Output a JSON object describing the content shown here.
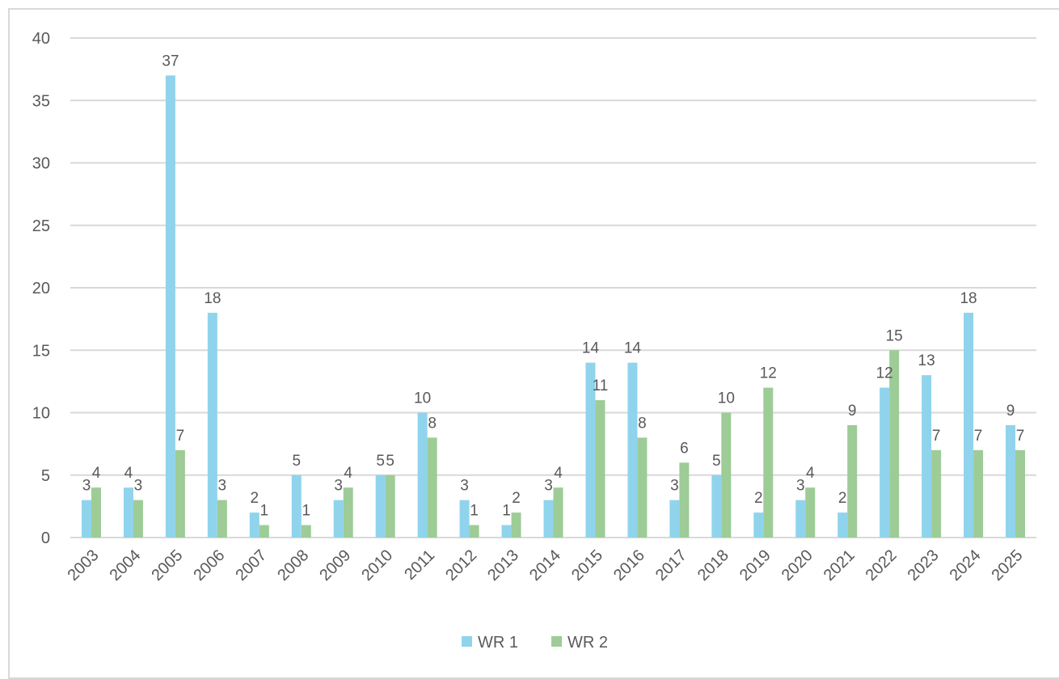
{
  "chart_data": {
    "type": "bar",
    "title": "",
    "xlabel": "",
    "ylabel": "",
    "categories": [
      "2003",
      "2004",
      "2005",
      "2006",
      "2007",
      "2008",
      "2009",
      "2010",
      "2011",
      "2012",
      "2013",
      "2014",
      "2015",
      "2016",
      "2017",
      "2018",
      "2019",
      "2020",
      "2021",
      "2022",
      "2023",
      "2024",
      "2025"
    ],
    "series": [
      {
        "name": "WR 1",
        "color": "#8fd4ec",
        "values": [
          3,
          4,
          37,
          18,
          2,
          5,
          3,
          5,
          10,
          3,
          1,
          3,
          14,
          14,
          3,
          5,
          2,
          3,
          2,
          12,
          13,
          18,
          9
        ]
      },
      {
        "name": "WR 2",
        "color": "#9dcc97",
        "values": [
          4,
          3,
          7,
          3,
          1,
          1,
          4,
          5,
          8,
          1,
          2,
          4,
          11,
          8,
          6,
          10,
          12,
          4,
          9,
          15,
          7,
          7,
          7
        ]
      }
    ],
    "ylim": [
      0,
      40
    ],
    "yticks": [
      0,
      5,
      10,
      15,
      20,
      25,
      30,
      35,
      40
    ],
    "grid": true,
    "legend": "bottom",
    "data_labels": true
  }
}
